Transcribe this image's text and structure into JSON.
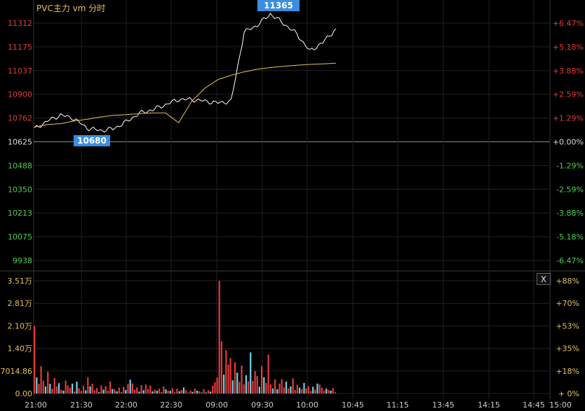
{
  "title": "PVC主力 vm 分时",
  "close_label": "X",
  "chart_data": [
    {
      "type": "line",
      "title": "PVC主力 vm 分时",
      "y_labels_left": [
        "11312",
        "11175",
        "11037",
        "10900",
        "10762",
        "10625",
        "10488",
        "10350",
        "10213",
        "10075",
        "9938"
      ],
      "y_labels_right": [
        "+6.47%",
        "+5.18%",
        "+3.88%",
        "+2.59%",
        "+1.29%",
        "+0.00%",
        "-1.29%",
        "-2.59%",
        "-3.88%",
        "-5.18%",
        "-6.47%"
      ],
      "ylim": [
        9938,
        11312
      ],
      "base_price": 10625,
      "max_marker": {
        "value": 11365,
        "label": "11365"
      },
      "min_marker": {
        "value": 10680,
        "label": "10680"
      },
      "x_labels": [
        "21:00",
        "21:30",
        "22:00",
        "22:30",
        "09:00",
        "09:30",
        "10:00",
        "10:45",
        "11:15",
        "13:45",
        "14:15",
        "14:45",
        "15:00"
      ],
      "series": [
        {
          "values": [
            10700,
            10745,
            10780,
            10760,
            10705,
            10690,
            10700,
            10740,
            10790,
            10810,
            10840,
            10870,
            10870,
            10860,
            10850,
            10860,
            11260,
            11300,
            11365,
            11310,
            11250,
            11150,
            11200,
            11280
          ]
        },
        {
          "values": [
            10710,
            10725,
            10730,
            10745,
            10755,
            10768,
            10778,
            10782,
            10788,
            10792,
            10792,
            10735,
            10860,
            10935,
            10985,
            11010,
            11030,
            11045,
            11055,
            11062,
            11068,
            11073,
            11076,
            11080
          ]
        }
      ],
      "series_colors": [
        "#ffffff",
        "#e6c35a"
      ]
    },
    {
      "type": "bar",
      "y_labels_left": [
        "3.51万",
        "2.81万",
        "2.10万",
        "1.40万",
        "7014.86",
        "0.00"
      ],
      "y_labels_right": [
        "+88%",
        "+70%",
        "+53%",
        "+35%",
        "+18%",
        "+ 0%"
      ],
      "ylim": [
        0,
        35100
      ],
      "values": [
        21000,
        5000,
        3000,
        8500,
        4000,
        2200,
        6800,
        3000,
        1500,
        4800,
        2200,
        3200,
        1200,
        900,
        4000,
        2500,
        1800,
        3100,
        600,
        3700,
        1600,
        800,
        2400,
        1000,
        5000,
        2200,
        3000,
        1000,
        1700,
        400,
        2500,
        1200,
        2300,
        900,
        3800,
        1400,
        1300,
        700,
        1800,
        500,
        2100,
        1100,
        3000,
        4300,
        3100,
        1200,
        1900,
        600,
        2600,
        1000,
        2800,
        1400,
        2500,
        700,
        1200,
        900,
        1500,
        500,
        2200,
        1300,
        900,
        800,
        1600,
        400,
        1500,
        700,
        1100,
        1900,
        1100,
        300,
        900,
        500,
        1500,
        900,
        700,
        400,
        1400,
        300,
        1000,
        600,
        2400,
        3500,
        5000,
        35100,
        16200,
        5900,
        13500,
        9000,
        11000,
        4100,
        9700,
        6500,
        3600,
        8700,
        2900,
        5700,
        3800,
        12800,
        3900,
        7000,
        5500,
        2100,
        8600,
        5100,
        3300,
        12100,
        2900,
        1600,
        4400,
        1300,
        3100,
        4500,
        1900,
        3700,
        1600,
        2200,
        4700,
        1100,
        2700,
        1800,
        1400,
        3300,
        1600,
        2300,
        800,
        2100,
        1200,
        3100,
        2800,
        1800,
        900,
        1500,
        1100,
        900,
        1700,
        400
      ],
      "up_colors": "#e23b3b",
      "down_color": "#6fd2e6"
    }
  ]
}
